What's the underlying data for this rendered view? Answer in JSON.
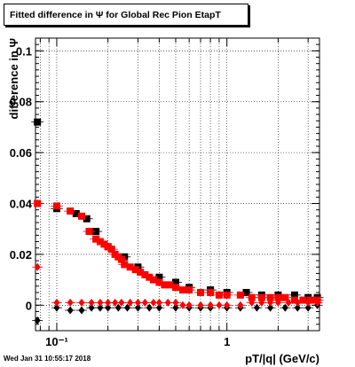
{
  "title": "Fitted difference in  Ψ  for Global Rec Pion EtapT",
  "footer": "Wed Jan 31 10:55:17 2018",
  "chart_data": {
    "type": "scatter",
    "xlabel": "pT/|q| (GeV/c)",
    "ylabel": "difference in Ψ",
    "xscale": "log",
    "xlim": [
      0.075,
      3.5
    ],
    "ylim": [
      -0.01,
      0.105
    ],
    "y_ticks": [
      0,
      0.02,
      0.04,
      0.06,
      0.08,
      0.1
    ],
    "y_tick_labels": [
      "0",
      "0.02",
      "0.04",
      "0.06",
      "0.08",
      "0.1"
    ],
    "x_major_ticks": [
      0.1,
      1
    ],
    "x_tick_labels": [
      "10⁻¹",
      "1"
    ],
    "grid": true,
    "series": [
      {
        "marker": "square",
        "color": "#000000",
        "x": [
          0.077,
          0.1,
          0.13,
          0.15,
          0.17,
          0.2,
          0.25,
          0.3,
          0.4,
          0.5,
          0.6,
          0.8,
          1.0,
          1.3,
          1.6,
          2.0,
          2.5,
          3.0,
          3.4
        ],
        "y": [
          0.072,
          0.038,
          0.036,
          0.034,
          0.029,
          0.023,
          0.019,
          0.015,
          0.011,
          0.009,
          0.007,
          0.006,
          0.005,
          0.005,
          0.004,
          0.004,
          0.004,
          0.003,
          0.003
        ]
      },
      {
        "marker": "square",
        "color": "#ff0000",
        "x": [
          0.077,
          0.1,
          0.12,
          0.14,
          0.155,
          0.17,
          0.18,
          0.19,
          0.2,
          0.21,
          0.22,
          0.23,
          0.24,
          0.25,
          0.27,
          0.29,
          0.31,
          0.33,
          0.35,
          0.37,
          0.4,
          0.43,
          0.46,
          0.5,
          0.55,
          0.6,
          0.7,
          0.8,
          0.9,
          1.0,
          1.2,
          1.4,
          1.6,
          1.8,
          2.0,
          2.2,
          2.5,
          2.8,
          3.1,
          3.4
        ],
        "y": [
          0.04,
          0.039,
          0.037,
          0.035,
          0.029,
          0.026,
          0.025,
          0.024,
          0.023,
          0.022,
          0.02,
          0.019,
          0.018,
          0.016,
          0.015,
          0.014,
          0.013,
          0.012,
          0.011,
          0.01,
          0.009,
          0.008,
          0.008,
          0.007,
          0.006,
          0.006,
          0.005,
          0.005,
          0.004,
          0.004,
          0.004,
          0.003,
          0.003,
          0.003,
          0.003,
          0.003,
          0.002,
          0.002,
          0.002,
          0.002
        ]
      },
      {
        "marker": "diamond",
        "color": "#000000",
        "x": [
          0.077,
          0.1,
          0.12,
          0.14,
          0.16,
          0.18,
          0.2,
          0.23,
          0.26,
          0.3,
          0.35,
          0.4,
          0.5,
          0.6,
          0.7,
          0.8,
          1.0,
          1.2,
          1.5,
          1.8,
          2.2,
          2.6,
          3.0,
          3.4
        ],
        "y": [
          -0.006,
          -0.001,
          -0.002,
          -0.002,
          -0.001,
          -0.001,
          -0.001,
          -0.001,
          -0.001,
          -0.001,
          -0.001,
          -0.001,
          -0.001,
          -0.001,
          -0.001,
          -0.001,
          -0.001,
          -0.001,
          -0.001,
          -0.001,
          -0.001,
          -0.001,
          -0.001,
          0.0
        ]
      },
      {
        "marker": "diamond",
        "color": "#ff0000",
        "x": [
          0.077,
          0.1,
          0.12,
          0.14,
          0.16,
          0.18,
          0.2,
          0.22,
          0.24,
          0.27,
          0.3,
          0.33,
          0.37,
          0.4,
          0.45,
          0.5,
          0.55,
          0.6,
          0.7,
          0.8,
          0.9,
          1.0,
          1.2,
          1.4,
          1.6,
          1.8,
          2.0,
          2.3,
          2.6,
          3.0,
          3.4
        ],
        "y": [
          0.015,
          0.001,
          0.001,
          0.001,
          0.001,
          0.001,
          0.001,
          0.001,
          0.001,
          0.001,
          0.001,
          0.001,
          0.001,
          0.001,
          0.001,
          0.001,
          0.0,
          0.0,
          0.0,
          0.0,
          0.0,
          0.0,
          0.0,
          0.001,
          0.001,
          0.001,
          0.001,
          0.001,
          0.001,
          0.001,
          0.001
        ]
      }
    ]
  }
}
